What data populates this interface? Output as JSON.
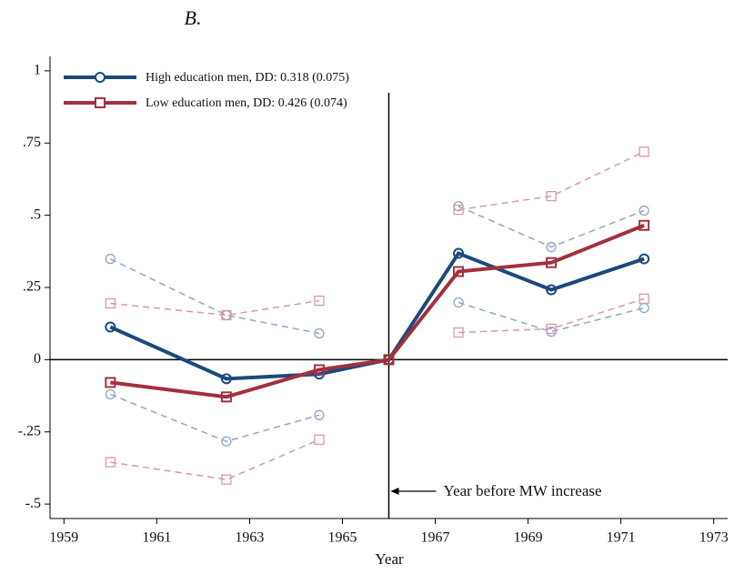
{
  "chart_data": {
    "type": "line",
    "title": "B.",
    "x_label": "Year",
    "x": [
      1960,
      1962.5,
      1964.5,
      1966,
      1967.5,
      1969.5,
      1971.5
    ],
    "series": [
      {
        "name": "High education men, DD: 0.318 (0.075)",
        "color": "#1b4a7c",
        "ci_color": "#8ea6c8",
        "marker": "circle",
        "values": [
          0.113,
          -0.066,
          -0.05,
          0,
          0.368,
          0.242,
          0.349
        ],
        "upper": [
          0.349,
          0.154,
          0.091,
          null,
          0.531,
          0.39,
          0.516
        ],
        "lower": [
          -0.12,
          -0.283,
          -0.192,
          null,
          0.198,
          0.097,
          0.179
        ]
      },
      {
        "name": "Low education men, DD: 0.426 (0.074)",
        "color": "#a3303d",
        "ci_color": "#d99aa1",
        "marker": "square",
        "values": [
          -0.079,
          -0.129,
          -0.035,
          0,
          0.305,
          0.336,
          0.465
        ],
        "upper": [
          0.195,
          0.154,
          0.204,
          null,
          0.519,
          0.566,
          0.72
        ],
        "lower": [
          -0.355,
          -0.415,
          -0.277,
          null,
          0.094,
          0.107,
          0.211
        ]
      }
    ],
    "xlim": [
      1958.7,
      1973.3
    ],
    "xticks": [
      1959,
      1961,
      1963,
      1965,
      1967,
      1969,
      1971,
      1973
    ],
    "ylim": [
      -0.55,
      1.05
    ],
    "yticks": [
      {
        "value": -0.5,
        "label": "-.5"
      },
      {
        "value": -0.25,
        "label": "-.25"
      },
      0,
      {
        "value": 0.25,
        "label": ".25"
      },
      {
        "value": 0.5,
        "label": ".5"
      },
      {
        "value": 0.75,
        "label": ".75"
      },
      1
    ],
    "hline": 0,
    "vline": 1966,
    "annotation": "Year before MW increase",
    "legend": "upper left"
  }
}
